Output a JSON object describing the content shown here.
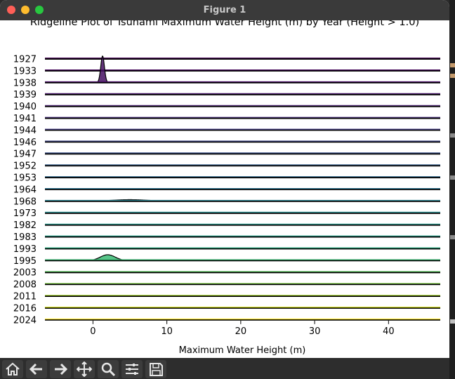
{
  "window": {
    "title": "Figure 1"
  },
  "toolbar": {
    "buttons": [
      {
        "name": "home-icon"
      },
      {
        "name": "back-arrow-icon"
      },
      {
        "name": "forward-arrow-icon"
      },
      {
        "name": "pan-icon"
      },
      {
        "name": "zoom-icon"
      },
      {
        "name": "configure-subplots-icon"
      },
      {
        "name": "save-icon"
      }
    ]
  },
  "chart_data": {
    "type": "area",
    "subtype": "ridgeline",
    "title": "Ridgeline Plot of Tsunami Maximum Water Height (m) by Year (Height > 1.0)",
    "xlabel": "Maximum Water Height (m)",
    "ylabel": "",
    "xlim": [
      -6.5,
      47
    ],
    "xticks": [
      0,
      10,
      20,
      30,
      40
    ],
    "grid": false,
    "legend": "none",
    "colormap": "viridis",
    "series": [
      {
        "name": "1927",
        "color": "#440154",
        "peaks": []
      },
      {
        "name": "1933",
        "color": "#46085c",
        "peaks": []
      },
      {
        "name": "1938",
        "color": "#471063",
        "peaks": [
          {
            "x": 1.3,
            "sd": 0.25,
            "height": 1.0
          }
        ]
      },
      {
        "name": "1939",
        "color": "#481769",
        "peaks": []
      },
      {
        "name": "1940",
        "color": "#481f70",
        "peaks": []
      },
      {
        "name": "1941",
        "color": "#472d7b",
        "peaks": []
      },
      {
        "name": "1944",
        "color": "#443a83",
        "peaks": []
      },
      {
        "name": "1946",
        "color": "#404688",
        "peaks": []
      },
      {
        "name": "1947",
        "color": "#3b528b",
        "peaks": []
      },
      {
        "name": "1952",
        "color": "#355f8d",
        "peaks": []
      },
      {
        "name": "1953",
        "color": "#306a8e",
        "peaks": []
      },
      {
        "name": "1964",
        "color": "#2c728e",
        "peaks": []
      },
      {
        "name": "1968",
        "color": "#26818e",
        "peaks": [
          {
            "x": 5,
            "sd": 2.5,
            "height": 0.06
          }
        ]
      },
      {
        "name": "1973",
        "color": "#228c8d",
        "peaks": []
      },
      {
        "name": "1982",
        "color": "#1f988b",
        "peaks": []
      },
      {
        "name": "1983",
        "color": "#1fa088",
        "peaks": []
      },
      {
        "name": "1993",
        "color": "#28ae80",
        "peaks": []
      },
      {
        "name": "1995",
        "color": "#3bbb75",
        "peaks": [
          {
            "x": 2,
            "sd": 1.0,
            "height": 0.22
          }
        ]
      },
      {
        "name": "2003",
        "color": "#5ec962",
        "peaks": []
      },
      {
        "name": "2008",
        "color": "#84d44b",
        "peaks": []
      },
      {
        "name": "2011",
        "color": "#addc30",
        "peaks": []
      },
      {
        "name": "2016",
        "color": "#d8e219",
        "peaks": []
      },
      {
        "name": "2024",
        "color": "#fde725",
        "peaks": []
      }
    ]
  }
}
